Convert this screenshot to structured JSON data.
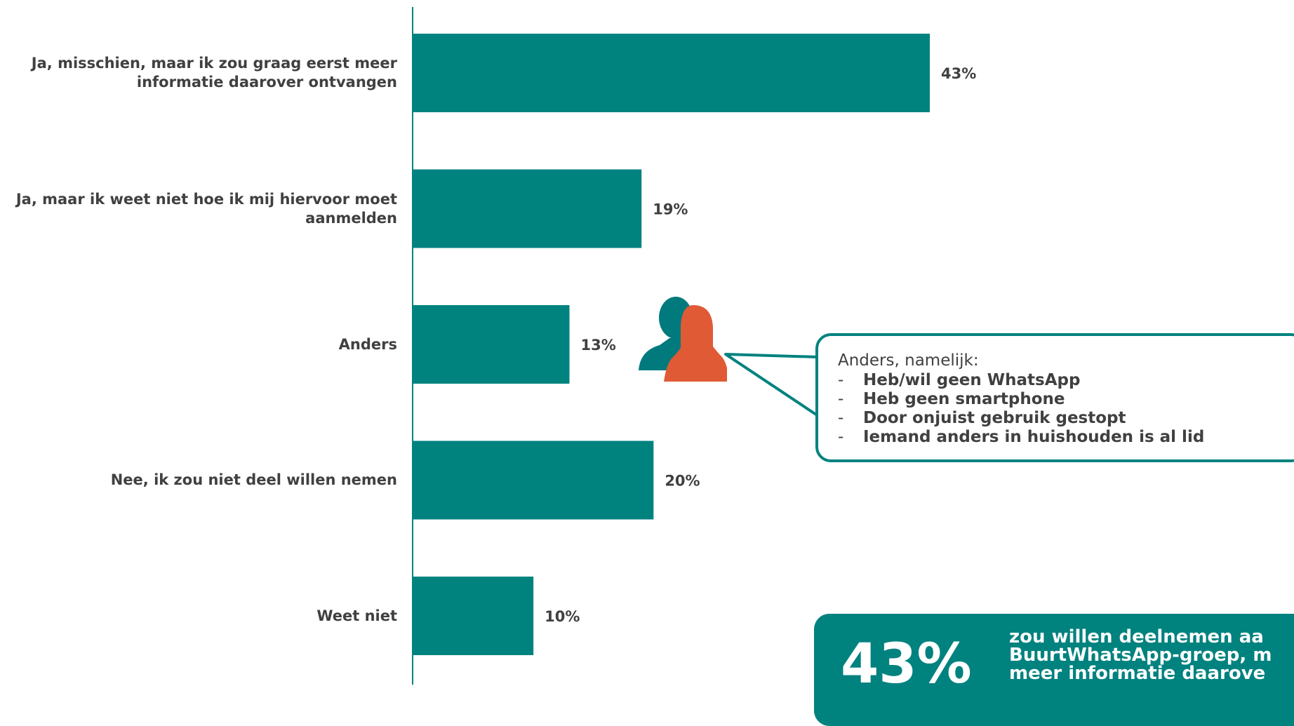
{
  "chart_data": {
    "type": "bar",
    "orientation": "horizontal",
    "categories": [
      "Ja, misschien, maar ik zou graag eerst meer informatie daarover ontvangen",
      "Ja, maar ik weet niet hoe ik mij hiervoor moet aanmelden",
      "Anders",
      "Nee, ik zou niet deel willen nemen",
      "Weet niet"
    ],
    "category_lines": [
      [
        "Ja, misschien, maar ik zou graag eerst meer",
        "informatie daarover ontvangen"
      ],
      [
        "Ja, maar ik weet niet hoe ik mij hiervoor moet",
        "aanmelden"
      ],
      [
        "Anders"
      ],
      [
        "Nee, ik zou niet deel willen nemen"
      ],
      [
        "Weet niet"
      ]
    ],
    "values": [
      43,
      19,
      13,
      20,
      10
    ],
    "value_labels": [
      "43%",
      "19%",
      "13%",
      "20%",
      "10%"
    ],
    "xlim": [
      0,
      43
    ],
    "bar_color": "#00827f",
    "grid": false,
    "legend": "none"
  },
  "callout": {
    "title": "Anders, namelijk:",
    "items": [
      "Heb/wil geen WhatsApp",
      "Heb geen smartphone",
      "Door onjuist gebruik gestopt",
      "Iemand anders in huishouden is al lid"
    ],
    "border_color": "#00827f"
  },
  "people_icon": {
    "name": "people-icon",
    "colors": [
      "#007a7c",
      "#e05a36"
    ]
  },
  "summary": {
    "percentage": "43%",
    "text": "zou willen deelnemen aa\nBuurtWhatsApp-groep, m\nmeer informatie daarove",
    "background": "#00827f"
  },
  "colors": {
    "label_text": "#404040",
    "axis": "#00827f"
  }
}
